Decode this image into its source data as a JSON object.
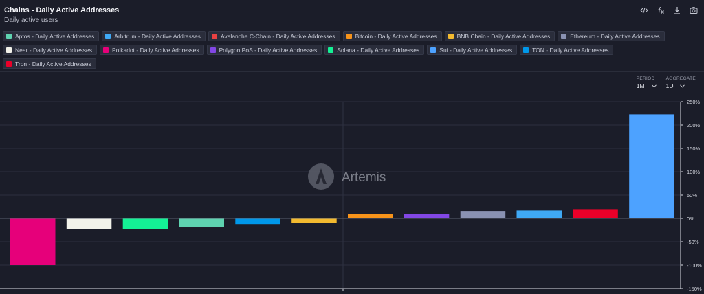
{
  "header": {
    "title": "Chains - Daily Active Addresses",
    "subtitle": "Daily active users"
  },
  "toolbar": {
    "icons": [
      "code-icon",
      "formula-icon",
      "download-icon",
      "camera-icon"
    ]
  },
  "controls": {
    "period_label": "PERIOD",
    "period_value": "1M",
    "aggregate_label": "AGGREGATE",
    "aggregate_value": "1D"
  },
  "watermark": "Artemis",
  "legend": [
    {
      "label": "Aptos - Daily Active Addresses",
      "color": "#5fd3b0"
    },
    {
      "label": "Arbitrum - Daily Active Addresses",
      "color": "#3fa9f5"
    },
    {
      "label": "Avalanche C-Chain - Daily Active Addresses",
      "color": "#e84142"
    },
    {
      "label": "Bitcoin - Daily Active Addresses",
      "color": "#f7931a"
    },
    {
      "label": "BNB Chain - Daily Active Addresses",
      "color": "#f3ba2f"
    },
    {
      "label": "Ethereum - Daily Active Addresses",
      "color": "#8a92b2"
    },
    {
      "label": "Near - Daily Active Addresses",
      "color": "#f2f2ea"
    },
    {
      "label": "Polkadot - Daily Active Addresses",
      "color": "#e6007a"
    },
    {
      "label": "Polygon PoS - Daily Active Addresses",
      "color": "#8247e5"
    },
    {
      "label": "Solana - Daily Active Addresses",
      "color": "#14f195"
    },
    {
      "label": "Sui - Daily Active Addresses",
      "color": "#4da2ff"
    },
    {
      "label": "TON - Daily Active Addresses",
      "color": "#0098ea"
    },
    {
      "label": "Tron - Daily Active Addresses",
      "color": "#eb0029"
    }
  ],
  "chart_data": {
    "type": "bar",
    "ylim": [
      -150,
      250
    ],
    "yticks": [
      -150,
      -100,
      -50,
      0,
      50,
      100,
      150,
      200,
      250
    ],
    "ytick_labels": [
      "-150%",
      "-100%",
      "-50%",
      "0%",
      "50%",
      "100%",
      "150%",
      "200%",
      "250%"
    ],
    "grid": true,
    "values": [
      -100,
      -23,
      -22,
      -19,
      -12,
      -9,
      9,
      10,
      16,
      17,
      20,
      223
    ],
    "colors": [
      "#e6007a",
      "#f2f2ea",
      "#14f195",
      "#5fd3b0",
      "#0098ea",
      "#f3ba2f",
      "#f7931a",
      "#8247e5",
      "#8a92b2",
      "#3fa9f5",
      "#eb0029",
      "#4da2ff"
    ]
  }
}
